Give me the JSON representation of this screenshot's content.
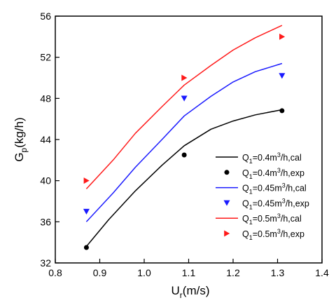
{
  "chart_data": {
    "type": "line",
    "xlabel_main": "U",
    "xlabel_sub": "r",
    "xlabel_rest": "(m/s)",
    "ylabel_main": "G",
    "ylabel_sub": "p",
    "ylabel_rest": "(kg/h)",
    "xlim": [
      0.8,
      1.4
    ],
    "ylim": [
      32,
      56
    ],
    "xticks": [
      "0.8",
      "0.9",
      "1.0",
      "1.1",
      "1.2",
      "1.3",
      "1.4"
    ],
    "yticks": [
      "32",
      "36",
      "40",
      "44",
      "48",
      "52",
      "56"
    ],
    "grid": false,
    "legend_position": "bottom-right",
    "series": [
      {
        "kind": "line",
        "color": "#000000",
        "legend": {
          "q": "Q",
          "qsub": "1",
          "eq": "=0.4m",
          "sup": "3",
          "tail": "/h,cal"
        },
        "points": [
          [
            0.87,
            33.6
          ],
          [
            0.92,
            36.2
          ],
          [
            0.98,
            39.0
          ],
          [
            1.04,
            41.5
          ],
          [
            1.09,
            43.4
          ],
          [
            1.15,
            45.0
          ],
          [
            1.2,
            45.8
          ],
          [
            1.25,
            46.4
          ],
          [
            1.31,
            46.9
          ]
        ]
      },
      {
        "kind": "marker",
        "marker": "circle",
        "color": "#000000",
        "legend": {
          "q": "Q",
          "qsub": "1",
          "eq": "=0.4m",
          "sup": "3",
          "tail": "/h,exp"
        },
        "points": [
          [
            0.87,
            33.5
          ],
          [
            1.09,
            42.5
          ],
          [
            1.31,
            46.8
          ]
        ]
      },
      {
        "kind": "line",
        "color": "#1a1aff",
        "legend": {
          "q": "Q",
          "qsub": "1",
          "eq": "=0.45m",
          "sup": "3",
          "tail": "/h,cal"
        },
        "points": [
          [
            0.87,
            36.0
          ],
          [
            0.93,
            38.8
          ],
          [
            0.98,
            41.3
          ],
          [
            1.04,
            44.0
          ],
          [
            1.09,
            46.3
          ],
          [
            1.15,
            48.2
          ],
          [
            1.2,
            49.6
          ],
          [
            1.25,
            50.6
          ],
          [
            1.31,
            51.4
          ]
        ]
      },
      {
        "kind": "marker",
        "marker": "triangle-down",
        "color": "#1a1aff",
        "legend": {
          "q": "Q",
          "qsub": "1",
          "eq": "=0.45m",
          "sup": "3",
          "tail": "/h,exp"
        },
        "points": [
          [
            0.87,
            37.0
          ],
          [
            1.09,
            48.0
          ],
          [
            1.31,
            50.2
          ]
        ]
      },
      {
        "kind": "line",
        "color": "#ff1a1a",
        "legend": {
          "q": "Q",
          "qsub": "1",
          "eq": "=0.5m",
          "sup": "3",
          "tail": "/h,cal"
        },
        "points": [
          [
            0.87,
            39.2
          ],
          [
            0.93,
            42.0
          ],
          [
            0.98,
            44.6
          ],
          [
            1.04,
            47.2
          ],
          [
            1.09,
            49.3
          ],
          [
            1.15,
            51.2
          ],
          [
            1.2,
            52.7
          ],
          [
            1.25,
            53.9
          ],
          [
            1.31,
            55.1
          ]
        ]
      },
      {
        "kind": "marker",
        "marker": "triangle-right",
        "color": "#ff1a1a",
        "legend": {
          "q": "Q",
          "qsub": "1",
          "eq": "=0.5m",
          "sup": "3",
          "tail": "/h,exp"
        },
        "points": [
          [
            0.87,
            40.0
          ],
          [
            1.09,
            50.0
          ],
          [
            1.31,
            54.0
          ]
        ]
      }
    ]
  }
}
